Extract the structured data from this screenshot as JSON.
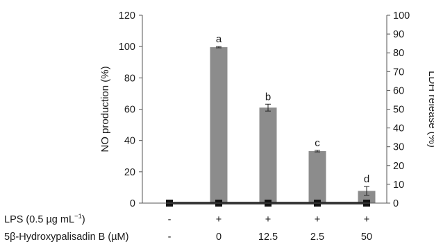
{
  "chart_data": {
    "type": "bar",
    "title": "",
    "categories": [
      "0",
      "0",
      "12.5",
      "2.5",
      "50"
    ],
    "rows": [
      {
        "label_main": "LPS (0.5 µg mL",
        "label_sup": "−1",
        "label_tail": ")",
        "values": [
          "-",
          "+",
          "+",
          "+",
          "+"
        ]
      },
      {
        "label_main": "5β-Hydroxypalisadin B (µM)",
        "label_sup": "",
        "label_tail": "",
        "values": [
          "-",
          "0",
          "12.5",
          "2.5",
          "50"
        ]
      }
    ],
    "series": [
      {
        "name": "NO production",
        "axis": "left",
        "render": "bar",
        "color": "#8c8c8c",
        "values": [
          0,
          99.6,
          61,
          33.2,
          7.8
        ],
        "errors": [
          0,
          0.4,
          2.2,
          0.5,
          2.8
        ],
        "significance": [
          "",
          "a",
          "b",
          "c",
          "d"
        ]
      },
      {
        "name": "LDH release",
        "axis": "right",
        "render": "line",
        "color": "#111111",
        "values": [
          0,
          0,
          0,
          0,
          0
        ]
      }
    ],
    "ylabel_left": "NO production (%)",
    "ylabel_right": "LDH release (%)",
    "ylim_left": [
      0,
      120
    ],
    "yticks_left": [
      "0",
      "20",
      "40",
      "60",
      "80",
      "100",
      "120"
    ],
    "ylim_right": [
      0,
      100
    ],
    "yticks_right": [
      "0",
      "10",
      "20",
      "30",
      "40",
      "50",
      "60",
      "70",
      "80",
      "90",
      "100"
    ],
    "grid": false,
    "legend": "none"
  }
}
